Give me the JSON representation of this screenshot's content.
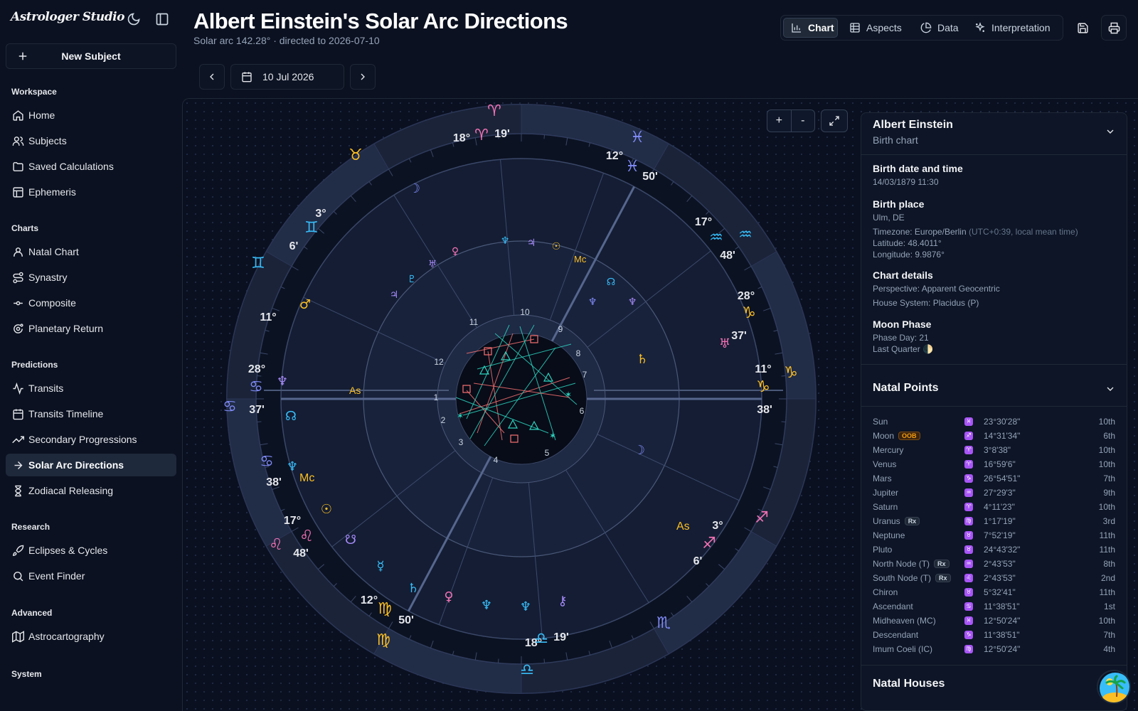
{
  "app": {
    "brand": "Astrologer Studio",
    "new_subject_label": "New Subject"
  },
  "sidebar": {
    "sections": [
      {
        "title": "Workspace",
        "items": [
          {
            "label": "Home",
            "icon": "home-icon"
          },
          {
            "label": "Subjects",
            "icon": "users-icon"
          },
          {
            "label": "Saved Calculations",
            "icon": "folder-icon"
          },
          {
            "label": "Ephemeris",
            "icon": "table-icon"
          }
        ]
      },
      {
        "title": "Charts",
        "items": [
          {
            "label": "Natal Chart",
            "icon": "user-icon"
          },
          {
            "label": "Synastry",
            "icon": "route-icon"
          },
          {
            "label": "Composite",
            "icon": "commit-icon"
          },
          {
            "label": "Planetary Return",
            "icon": "orbit-icon"
          }
        ]
      },
      {
        "title": "Predictions",
        "items": [
          {
            "label": "Transits",
            "icon": "activity-icon"
          },
          {
            "label": "Transits Timeline",
            "icon": "calendar-icon"
          },
          {
            "label": "Secondary Progressions",
            "icon": "trending-up-icon"
          },
          {
            "label": "Solar Arc Directions",
            "icon": "arrow-right-icon",
            "active": true
          },
          {
            "label": "Zodiacal Releasing",
            "icon": "hourglass-icon"
          }
        ]
      },
      {
        "title": "Research",
        "items": [
          {
            "label": "Eclipses & Cycles",
            "icon": "rocket-icon"
          },
          {
            "label": "Event Finder",
            "icon": "search-icon"
          }
        ]
      },
      {
        "title": "Advanced",
        "items": [
          {
            "label": "Astrocartography",
            "icon": "map-icon"
          }
        ]
      },
      {
        "title": "System",
        "items": []
      }
    ]
  },
  "header": {
    "title": "Albert Einstein's Solar Arc Directions",
    "subtitle": "Solar arc 142.28° · directed to 2026-07-10",
    "tabs": [
      {
        "label": "Chart",
        "icon": "bar-chart-icon",
        "active": true
      },
      {
        "label": "Aspects",
        "icon": "grid-icon"
      },
      {
        "label": "Data",
        "icon": "pie-icon"
      },
      {
        "label": "Interpretation",
        "icon": "sparkles-icon"
      }
    ],
    "date_value": "10 Jul 2026"
  },
  "chart_controls": {
    "zoom_in": "+",
    "zoom_out": "-"
  },
  "wheel": {
    "house_numbers": [
      "1",
      "2",
      "3",
      "4",
      "5",
      "6",
      "7",
      "8",
      "9",
      "10",
      "11",
      "12"
    ],
    "outer_labels": [
      {
        "deg": "18°",
        "min": "19'"
      },
      {
        "deg": "12°",
        "min": "50'"
      },
      {
        "deg": "17°",
        "min": "48'"
      },
      {
        "deg": "28°",
        "min": "37'"
      },
      {
        "deg": "11°",
        "min": "38'"
      },
      {
        "deg": "3°",
        "min": "6'"
      },
      {
        "deg": "18°",
        "min": "19'"
      },
      {
        "deg": "12°",
        "min": "50'"
      },
      {
        "deg": "17°",
        "min": "48'"
      },
      {
        "deg": "28°",
        "min": "37'"
      },
      {
        "deg": "11°",
        "min": "38'"
      },
      {
        "deg": "3°",
        "min": "6'"
      }
    ]
  },
  "subject_panel": {
    "name": "Albert Einstein",
    "chart_type": "Birth chart",
    "birth_heading": "Birth date and time",
    "birth_value": "14/03/1879 11:30",
    "place_heading": "Birth place",
    "place_value": "Ulm, DE",
    "timezone_label": "Timezone: Europe/Berlin",
    "timezone_note": "(UTC+0:39, local mean time)",
    "latitude": "Latitude: 48.4011°",
    "longitude": "Longitude: 9.9876°",
    "details_heading": "Chart details",
    "perspective": "Perspective: Apparent Geocentric",
    "house_system": "House System: Placidus (P)",
    "moon_heading": "Moon Phase",
    "phase_day": "Phase Day: 21",
    "phase_name": "Last Quarter 🌓"
  },
  "natal_points": {
    "title": "Natal Points",
    "rows": [
      {
        "name": "Sun",
        "sign": "♓",
        "pos": "23°30'28\"",
        "house": "10th"
      },
      {
        "name": "Moon",
        "badge": "OOB",
        "sign": "♐",
        "pos": "14°31'34\"",
        "house": "6th"
      },
      {
        "name": "Mercury",
        "sign": "♈",
        "pos": "3°8'38\"",
        "house": "10th"
      },
      {
        "name": "Venus",
        "sign": "♈",
        "pos": "16°59'6\"",
        "house": "10th"
      },
      {
        "name": "Mars",
        "sign": "♑",
        "pos": "26°54'51\"",
        "house": "7th"
      },
      {
        "name": "Jupiter",
        "sign": "♒",
        "pos": "27°29'3\"",
        "house": "9th"
      },
      {
        "name": "Saturn",
        "sign": "♈",
        "pos": "4°11'23\"",
        "house": "10th"
      },
      {
        "name": "Uranus",
        "badge": "Rx",
        "sign": "♍",
        "pos": "1°17'19\"",
        "house": "3rd"
      },
      {
        "name": "Neptune",
        "sign": "♉",
        "pos": "7°52'19\"",
        "house": "11th"
      },
      {
        "name": "Pluto",
        "sign": "♉",
        "pos": "24°43'32\"",
        "house": "11th"
      },
      {
        "name": "North Node (T)",
        "badge": "Rx",
        "sign": "♒",
        "pos": "2°43'53\"",
        "house": "8th"
      },
      {
        "name": "South Node (T)",
        "badge": "Rx",
        "sign": "♌",
        "pos": "2°43'53\"",
        "house": "2nd"
      },
      {
        "name": "Chiron",
        "sign": "♉",
        "pos": "5°32'41\"",
        "house": "11th"
      },
      {
        "name": "Ascendant",
        "sign": "♋",
        "pos": "11°38'51\"",
        "house": "1st"
      },
      {
        "name": "Midheaven (MC)",
        "sign": "♓",
        "pos": "12°50'24\"",
        "house": "10th"
      },
      {
        "name": "Descendant",
        "sign": "♑",
        "pos": "11°38'51\"",
        "house": "7th"
      },
      {
        "name": "Imum Coeli (IC)",
        "sign": "♍",
        "pos": "12°50'24\"",
        "house": "4th"
      }
    ]
  },
  "natal_houses": {
    "title": "Natal Houses"
  }
}
